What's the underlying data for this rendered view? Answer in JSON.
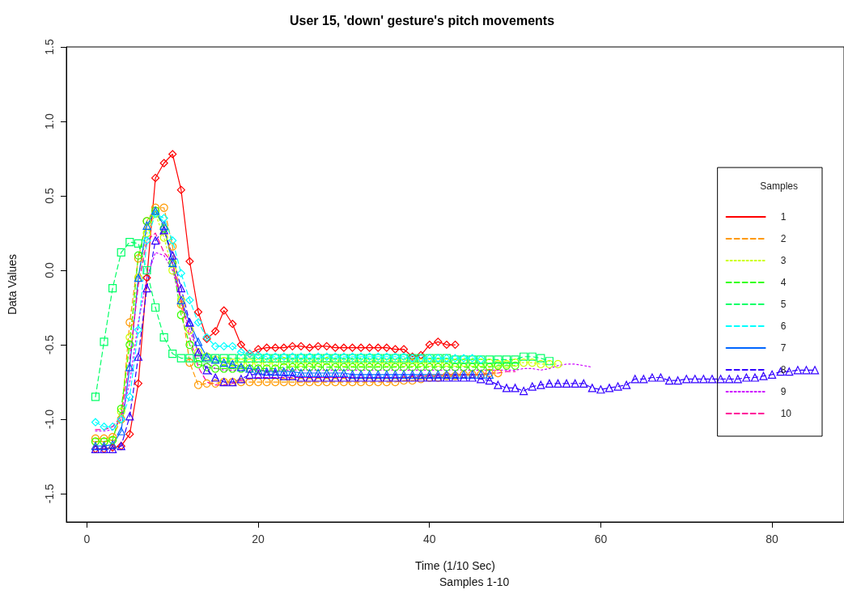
{
  "chart_data": {
    "type": "line",
    "title": "User 15, 'down' gesture's pitch movements",
    "xlabel": "Time (1/10 Sec)",
    "ylabel": "Data Values",
    "legend_title": "Samples",
    "annotations": [
      "Samples 1-10"
    ],
    "x": [
      1,
      2,
      3,
      4,
      5,
      6,
      7,
      8,
      9,
      10,
      11,
      12,
      13,
      14,
      15,
      16,
      17,
      18,
      19,
      20,
      21,
      22,
      23,
      24,
      25,
      26,
      27,
      28,
      29,
      30,
      31,
      32,
      33,
      34,
      35,
      36,
      37,
      38,
      39,
      40,
      41,
      42,
      43,
      44,
      45,
      46,
      47,
      48,
      49,
      50,
      51,
      52,
      53,
      54,
      55,
      56,
      57,
      58,
      59,
      60,
      61,
      62,
      63,
      64,
      65,
      66,
      67,
      68,
      69,
      70,
      71,
      72,
      73,
      74,
      75,
      76,
      77,
      78,
      79,
      80,
      81,
      82,
      83,
      84,
      85
    ],
    "xlim": [
      -2.4,
      88.4
    ],
    "xticks": [
      0,
      20,
      40,
      60,
      80
    ],
    "ylim": [
      -1.69,
      1.5
    ],
    "yticks": [
      {
        "value": -1.5,
        "label": "-1.5"
      },
      {
        "value": -1,
        "label": "-1.0"
      },
      {
        "value": -0.5,
        "label": "-0.5"
      },
      {
        "value": 0,
        "label": "0.0"
      },
      {
        "value": 0.5,
        "label": "0.5"
      },
      {
        "value": 1,
        "label": "1.0"
      },
      {
        "value": 1.5,
        "label": "1.5"
      }
    ],
    "grid": false,
    "legend": "right",
    "series": [
      {
        "name": "1",
        "color": "#ff0000",
        "marker": "diamond",
        "line_style": "solid",
        "values": [
          -1.2,
          -1.2,
          -1.19,
          -1.18,
          -1.1,
          -0.76,
          -0.05,
          0.62,
          0.72,
          0.78,
          0.54,
          0.06,
          -0.28,
          -0.46,
          -0.41,
          -0.27,
          -0.36,
          -0.5,
          -0.56,
          -0.53,
          -0.52,
          -0.52,
          -0.52,
          -0.51,
          -0.51,
          -0.52,
          -0.51,
          -0.51,
          -0.52,
          -0.52,
          -0.52,
          -0.52,
          -0.52,
          -0.52,
          -0.52,
          -0.53,
          -0.53,
          -0.58,
          -0.57,
          -0.5,
          -0.48,
          -0.5,
          -0.5,
          null,
          null,
          null,
          null,
          null,
          null,
          null,
          null,
          null,
          null,
          null,
          null,
          null,
          null,
          null,
          null,
          null,
          null,
          null,
          null,
          null,
          null,
          null,
          null,
          null,
          null,
          null,
          null,
          null,
          null,
          null,
          null,
          null,
          null,
          null,
          null,
          null,
          null,
          null,
          null,
          null,
          null
        ]
      },
      {
        "name": "2",
        "color": "#ff9900",
        "marker": "circle",
        "line_style": "dashed",
        "values": [
          -1.13,
          -1.13,
          -1.12,
          -1.0,
          -0.35,
          0.08,
          0.33,
          0.42,
          0.42,
          0.16,
          -0.23,
          -0.62,
          -0.77,
          -0.76,
          -0.76,
          -0.75,
          -0.75,
          -0.75,
          -0.75,
          -0.75,
          -0.75,
          -0.75,
          -0.75,
          -0.75,
          -0.75,
          -0.75,
          -0.75,
          -0.75,
          -0.75,
          -0.75,
          -0.75,
          -0.75,
          -0.75,
          -0.75,
          -0.75,
          -0.75,
          -0.74,
          -0.74,
          -0.73,
          -0.72,
          -0.72,
          -0.71,
          -0.71,
          -0.7,
          -0.7,
          -0.7,
          -0.69,
          -0.69,
          null,
          null,
          null,
          null,
          null,
          null,
          null,
          null,
          null,
          null,
          null,
          null,
          null,
          null,
          null,
          null,
          null,
          null,
          null,
          null,
          null,
          null,
          null,
          null,
          null,
          null,
          null,
          null,
          null,
          null,
          null,
          null,
          null,
          null,
          null,
          null,
          null
        ]
      },
      {
        "name": "3",
        "color": "#ccff00",
        "marker": "circle",
        "line_style": "dotted",
        "values": [
          -1.15,
          -1.15,
          -1.14,
          -0.95,
          -0.45,
          -0.05,
          0.25,
          0.38,
          0.22,
          0.0,
          -0.2,
          -0.4,
          -0.55,
          -0.58,
          -0.6,
          -0.61,
          -0.62,
          -0.62,
          -0.62,
          -0.62,
          -0.62,
          -0.62,
          -0.61,
          -0.62,
          -0.62,
          -0.62,
          -0.62,
          -0.61,
          -0.62,
          -0.62,
          -0.62,
          -0.62,
          -0.62,
          -0.62,
          -0.62,
          -0.62,
          -0.62,
          -0.62,
          -0.62,
          -0.62,
          -0.62,
          -0.62,
          -0.62,
          -0.62,
          -0.62,
          -0.62,
          -0.62,
          -0.63,
          -0.63,
          -0.62,
          -0.62,
          -0.62,
          -0.63,
          -0.63,
          -0.63,
          null,
          null,
          null,
          null,
          null,
          null,
          null,
          null,
          null,
          null,
          null,
          null,
          null,
          null,
          null,
          null,
          null,
          null,
          null,
          null,
          null,
          null,
          null,
          null,
          null,
          null,
          null,
          null,
          null,
          null
        ]
      },
      {
        "name": "4",
        "color": "#33ff00",
        "marker": "circle",
        "line_style": "dashed",
        "values": [
          -1.15,
          -1.15,
          -1.14,
          -0.93,
          -0.5,
          0.1,
          0.33,
          0.4,
          0.28,
          0.05,
          -0.3,
          -0.5,
          -0.63,
          -0.65,
          -0.66,
          -0.66,
          -0.66,
          -0.66,
          -0.66,
          -0.66,
          -0.66,
          -0.66,
          -0.65,
          -0.65,
          -0.65,
          -0.65,
          -0.65,
          -0.65,
          -0.65,
          -0.65,
          -0.65,
          -0.65,
          -0.65,
          -0.65,
          -0.65,
          -0.65,
          -0.65,
          -0.65,
          -0.65,
          -0.65,
          -0.65,
          -0.65,
          -0.65,
          -0.65,
          -0.65,
          -0.65,
          -0.65,
          -0.64,
          -0.64,
          -0.64,
          null,
          null,
          null,
          null,
          null,
          null,
          null,
          null,
          null,
          null,
          null,
          null,
          null,
          null,
          null,
          null,
          null,
          null,
          null,
          null,
          null,
          null,
          null,
          null,
          null,
          null,
          null,
          null,
          null,
          null,
          null,
          null,
          null,
          null,
          null
        ]
      },
      {
        "name": "5",
        "color": "#00ff66",
        "marker": "square",
        "line_style": "dashed",
        "values": [
          -0.85,
          -0.48,
          -0.12,
          0.12,
          0.19,
          0.18,
          0.0,
          -0.25,
          -0.45,
          -0.56,
          -0.59,
          -0.59,
          -0.59,
          -0.59,
          -0.59,
          -0.59,
          -0.59,
          -0.59,
          -0.59,
          -0.59,
          -0.59,
          -0.59,
          -0.59,
          -0.59,
          -0.59,
          -0.59,
          -0.59,
          -0.59,
          -0.59,
          -0.59,
          -0.59,
          -0.59,
          -0.59,
          -0.59,
          -0.59,
          -0.59,
          -0.59,
          -0.59,
          -0.59,
          -0.59,
          -0.59,
          -0.59,
          -0.6,
          -0.6,
          -0.6,
          -0.6,
          -0.6,
          -0.6,
          -0.6,
          -0.6,
          -0.58,
          -0.58,
          -0.59,
          -0.61,
          null,
          null,
          null,
          null,
          null,
          null,
          null,
          null,
          null,
          null,
          null,
          null,
          null,
          null,
          null,
          null,
          null,
          null,
          null,
          null,
          null,
          null,
          null,
          null,
          null,
          null,
          null,
          null,
          null,
          null,
          null
        ]
      },
      {
        "name": "6",
        "color": "#00ffff",
        "marker": "diamond",
        "line_style": "dashed",
        "values": [
          -1.02,
          -1.05,
          -1.05,
          -1.0,
          -0.85,
          -0.4,
          0.2,
          0.38,
          0.35,
          0.2,
          -0.02,
          -0.2,
          -0.35,
          -0.45,
          -0.51,
          -0.51,
          -0.51,
          -0.55,
          -0.56,
          -0.57,
          -0.58,
          -0.58,
          -0.58,
          -0.58,
          -0.58,
          -0.58,
          -0.58,
          -0.58,
          -0.58,
          -0.58,
          -0.58,
          -0.58,
          -0.58,
          -0.58,
          -0.58,
          -0.58,
          -0.58,
          -0.59,
          -0.59,
          -0.59,
          -0.59,
          -0.59,
          -0.59,
          -0.59,
          -0.59,
          -0.6,
          null,
          null,
          null,
          null,
          null,
          null,
          null,
          null,
          null,
          null,
          null,
          null,
          null,
          null,
          null,
          null,
          null,
          null,
          null,
          null,
          null,
          null,
          null,
          null,
          null,
          null,
          null,
          null,
          null,
          null,
          null,
          null,
          null,
          null,
          null,
          null,
          null,
          null,
          null
        ]
      },
      {
        "name": "7",
        "color": "#0066ff",
        "marker": "triangle",
        "line_style": "solid",
        "values": [
          -1.18,
          -1.18,
          -1.17,
          -1.08,
          -0.65,
          -0.05,
          0.3,
          0.4,
          0.3,
          0.05,
          -0.2,
          -0.35,
          -0.48,
          -0.58,
          -0.6,
          -0.62,
          -0.63,
          -0.65,
          -0.66,
          -0.67,
          -0.68,
          -0.68,
          -0.68,
          -0.68,
          -0.69,
          -0.69,
          -0.69,
          -0.69,
          -0.69,
          -0.69,
          -0.7,
          -0.7,
          -0.7,
          -0.7,
          -0.7,
          -0.7,
          -0.7,
          -0.7,
          -0.7,
          -0.7,
          -0.7,
          -0.7,
          -0.7,
          -0.7,
          -0.7,
          -0.7,
          -0.7,
          null,
          null,
          null,
          null,
          null,
          null,
          null,
          null,
          null,
          null,
          null,
          null,
          null,
          null,
          null,
          null,
          null,
          null,
          null,
          null,
          null,
          null,
          null,
          null,
          null,
          null,
          null,
          null,
          null,
          null,
          null,
          null,
          null,
          null,
          null,
          null,
          null,
          null
        ]
      },
      {
        "name": "8",
        "color": "#3300ff",
        "marker": "triangle",
        "line_style": "dashed",
        "values": [
          -1.2,
          -1.2,
          -1.2,
          -1.18,
          -0.98,
          -0.58,
          -0.12,
          0.2,
          0.27,
          0.1,
          -0.12,
          -0.35,
          -0.55,
          -0.67,
          -0.72,
          -0.75,
          -0.75,
          -0.73,
          -0.7,
          -0.7,
          -0.7,
          -0.7,
          -0.71,
          -0.71,
          -0.72,
          -0.72,
          -0.72,
          -0.72,
          -0.72,
          -0.72,
          -0.72,
          -0.72,
          -0.72,
          -0.72,
          -0.72,
          -0.72,
          -0.72,
          -0.72,
          -0.72,
          -0.72,
          -0.72,
          -0.72,
          -0.72,
          -0.72,
          -0.72,
          -0.73,
          -0.74,
          -0.77,
          -0.79,
          -0.79,
          -0.81,
          -0.78,
          -0.77,
          -0.76,
          -0.76,
          -0.76,
          -0.76,
          -0.76,
          -0.79,
          -0.8,
          -0.79,
          -0.78,
          -0.77,
          -0.73,
          -0.73,
          -0.72,
          -0.72,
          -0.74,
          -0.74,
          -0.73,
          -0.73,
          -0.73,
          -0.73,
          -0.73,
          -0.73,
          -0.73,
          -0.72,
          -0.72,
          -0.71,
          -0.7,
          -0.68,
          -0.68,
          -0.67,
          -0.67,
          -0.67
        ]
      },
      {
        "name": "9",
        "color": "#cc00ff",
        "marker": "none",
        "line_style": "dotted",
        "values": [
          -1.08,
          -1.08,
          -1.07,
          -1.0,
          -0.75,
          -0.35,
          -0.05,
          0.12,
          0.1,
          0.0,
          -0.2,
          -0.4,
          -0.55,
          -0.62,
          -0.66,
          -0.67,
          -0.67,
          -0.67,
          -0.67,
          -0.67,
          -0.67,
          -0.67,
          -0.67,
          -0.67,
          -0.67,
          -0.67,
          -0.67,
          -0.67,
          -0.67,
          -0.67,
          -0.67,
          -0.67,
          -0.67,
          -0.67,
          -0.67,
          -0.67,
          -0.67,
          -0.67,
          -0.67,
          -0.67,
          -0.67,
          -0.67,
          -0.67,
          -0.67,
          -0.67,
          -0.67,
          -0.67,
          -0.67,
          -0.67,
          -0.67,
          -0.66,
          -0.66,
          -0.67,
          -0.66,
          -0.64,
          -0.63,
          -0.63,
          -0.64,
          -0.65,
          null,
          null,
          null,
          null,
          null,
          null,
          null,
          null,
          null,
          null,
          null,
          null,
          null,
          null,
          null,
          null,
          null,
          null,
          null,
          null,
          null,
          null,
          null,
          null,
          null,
          null
        ]
      },
      {
        "name": "10",
        "color": "#ff0099",
        "marker": "none",
        "line_style": "dashed",
        "values": [
          -1.07,
          -1.07,
          -1.05,
          -0.98,
          -0.6,
          -0.1,
          0.2,
          0.25,
          0.12,
          0.05,
          -0.2,
          -0.45,
          -0.65,
          -0.75,
          -0.77,
          -0.77,
          -0.76,
          -0.74,
          -0.73,
          -0.72,
          -0.72,
          -0.72,
          -0.72,
          -0.72,
          -0.72,
          -0.72,
          -0.72,
          -0.72,
          -0.72,
          -0.72,
          -0.72,
          -0.72,
          -0.72,
          -0.72,
          -0.72,
          -0.72,
          -0.72,
          -0.71,
          -0.71,
          -0.71,
          -0.71,
          -0.7,
          -0.7,
          -0.7,
          -0.7,
          -0.7,
          -0.69,
          -0.69,
          -0.68,
          -0.68,
          null,
          null,
          null,
          null,
          null,
          null,
          null,
          null,
          null,
          null,
          null,
          null,
          null,
          null,
          null,
          null,
          null,
          null,
          null,
          null,
          null,
          null,
          null,
          null,
          null,
          null,
          null,
          null,
          null,
          null,
          null,
          null,
          null,
          null,
          null
        ]
      }
    ]
  }
}
